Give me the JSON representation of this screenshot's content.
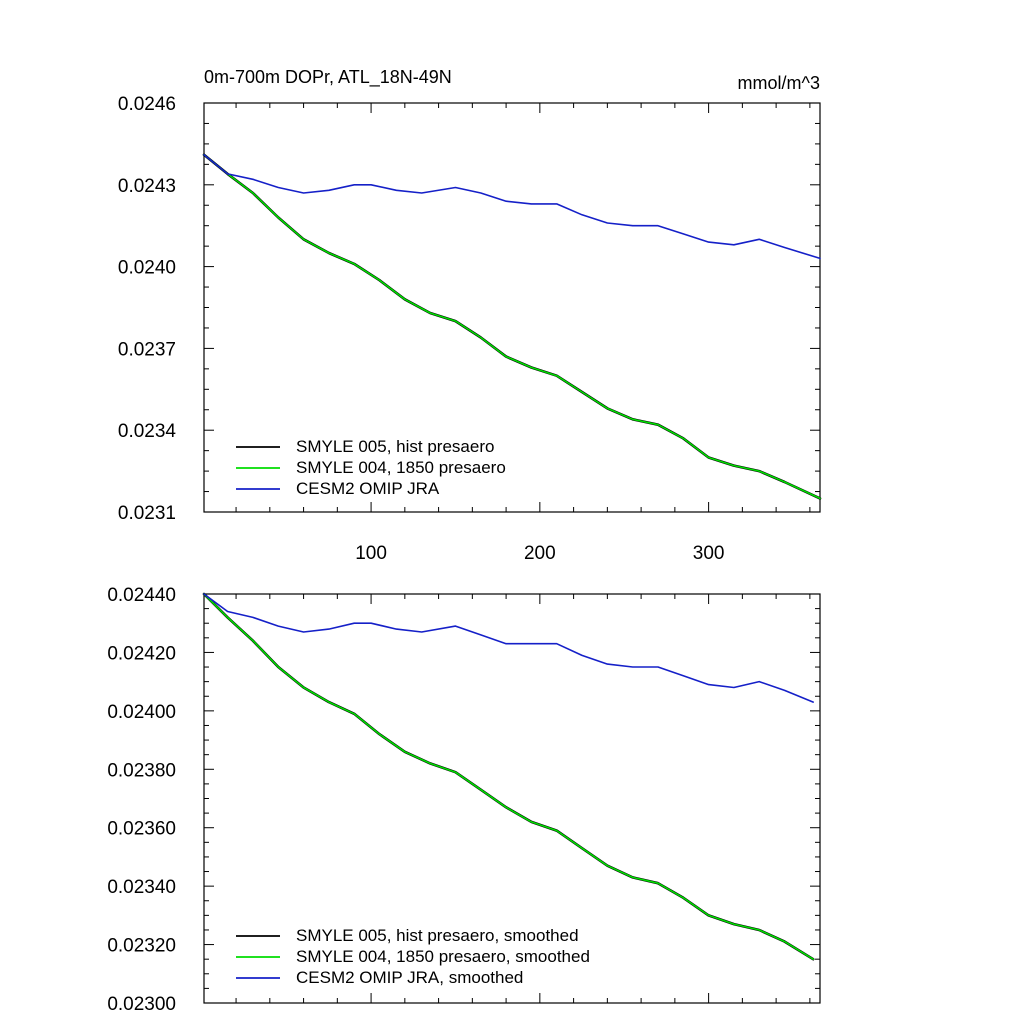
{
  "chart_data": [
    {
      "type": "line",
      "title": "0m-700m DOPr, ATL_18N-49N",
      "units": "mmol/m^3",
      "xlim": [
        1,
        366
      ],
      "ylim": [
        0.0231,
        0.0246
      ],
      "xticks": [
        100,
        200,
        300
      ],
      "xtick_labels": [
        "100",
        "200",
        "300"
      ],
      "yticks": [
        0.0231,
        0.0234,
        0.0237,
        0.024,
        0.0243,
        0.0246
      ],
      "ytick_labels": [
        "0.0231",
        "0.0234",
        "0.0237",
        "0.0240",
        "0.0243",
        "0.0246"
      ],
      "legend_position": "bottom-left",
      "series": [
        {
          "name": "SMYLE 005, hist presaero",
          "color": "#000000",
          "points": [
            [
              1,
              0.02441
            ],
            [
              15,
              0.02434
            ],
            [
              30,
              0.02427
            ],
            [
              45,
              0.02418
            ],
            [
              60,
              0.0241
            ],
            [
              75,
              0.02405
            ],
            [
              90,
              0.02401
            ],
            [
              105,
              0.02395
            ],
            [
              120,
              0.02388
            ],
            [
              135,
              0.02383
            ],
            [
              150,
              0.0238
            ],
            [
              165,
              0.02374
            ],
            [
              180,
              0.02367
            ],
            [
              195,
              0.02363
            ],
            [
              210,
              0.0236
            ],
            [
              225,
              0.02354
            ],
            [
              240,
              0.02348
            ],
            [
              255,
              0.02344
            ],
            [
              270,
              0.02342
            ],
            [
              285,
              0.02337
            ],
            [
              300,
              0.0233
            ],
            [
              315,
              0.02327
            ],
            [
              330,
              0.02325
            ],
            [
              345,
              0.02321
            ],
            [
              366,
              0.02315
            ]
          ]
        },
        {
          "name": "SMYLE 004, 1850 presaero",
          "color": "#00dd00",
          "points": [
            [
              1,
              0.02441
            ],
            [
              15,
              0.02434
            ],
            [
              30,
              0.02427
            ],
            [
              45,
              0.02418
            ],
            [
              60,
              0.0241
            ],
            [
              75,
              0.02405
            ],
            [
              90,
              0.02401
            ],
            [
              105,
              0.02395
            ],
            [
              120,
              0.02388
            ],
            [
              135,
              0.02383
            ],
            [
              150,
              0.0238
            ],
            [
              165,
              0.02374
            ],
            [
              180,
              0.02367
            ],
            [
              195,
              0.02363
            ],
            [
              210,
              0.0236
            ],
            [
              225,
              0.02354
            ],
            [
              240,
              0.02348
            ],
            [
              255,
              0.02344
            ],
            [
              270,
              0.02342
            ],
            [
              285,
              0.02337
            ],
            [
              300,
              0.0233
            ],
            [
              315,
              0.02327
            ],
            [
              330,
              0.02325
            ],
            [
              345,
              0.02321
            ],
            [
              366,
              0.02315
            ]
          ]
        },
        {
          "name": "CESM2 OMIP JRA",
          "color": "#1520c8",
          "points": [
            [
              1,
              0.02441
            ],
            [
              15,
              0.02434
            ],
            [
              30,
              0.02432
            ],
            [
              45,
              0.02429
            ],
            [
              60,
              0.02427
            ],
            [
              75,
              0.02428
            ],
            [
              90,
              0.0243
            ],
            [
              100,
              0.0243
            ],
            [
              115,
              0.02428
            ],
            [
              130,
              0.02427
            ],
            [
              150,
              0.02429
            ],
            [
              165,
              0.02427
            ],
            [
              180,
              0.02424
            ],
            [
              195,
              0.02423
            ],
            [
              210,
              0.02423
            ],
            [
              225,
              0.02419
            ],
            [
              240,
              0.02416
            ],
            [
              255,
              0.02415
            ],
            [
              270,
              0.02415
            ],
            [
              285,
              0.02412
            ],
            [
              300,
              0.02409
            ],
            [
              315,
              0.02408
            ],
            [
              330,
              0.0241
            ],
            [
              345,
              0.02407
            ],
            [
              366,
              0.02403
            ]
          ]
        }
      ]
    },
    {
      "type": "line",
      "xlim": [
        1,
        366
      ],
      "ylim": [
        0.023,
        0.0244
      ],
      "xticks": [
        100,
        200,
        300
      ],
      "yticks": [
        0.023,
        0.0232,
        0.0234,
        0.0236,
        0.0238,
        0.024,
        0.0242,
        0.0244
      ],
      "ytick_labels": [
        "0.02300",
        "0.02320",
        "0.02340",
        "0.02360",
        "0.02380",
        "0.02400",
        "0.02420",
        "0.02440"
      ],
      "legend_position": "bottom-left",
      "series": [
        {
          "name": "SMYLE 005, hist presaero, smoothed",
          "color": "#000000",
          "points": [
            [
              1,
              0.0244
            ],
            [
              15,
              0.02432
            ],
            [
              30,
              0.02424
            ],
            [
              45,
              0.02415
            ],
            [
              60,
              0.02408
            ],
            [
              75,
              0.02403
            ],
            [
              90,
              0.02399
            ],
            [
              105,
              0.02392
            ],
            [
              120,
              0.02386
            ],
            [
              135,
              0.02382
            ],
            [
              150,
              0.02379
            ],
            [
              165,
              0.02373
            ],
            [
              180,
              0.02367
            ],
            [
              195,
              0.02362
            ],
            [
              210,
              0.02359
            ],
            [
              225,
              0.02353
            ],
            [
              240,
              0.02347
            ],
            [
              255,
              0.02343
            ],
            [
              270,
              0.02341
            ],
            [
              285,
              0.02336
            ],
            [
              300,
              0.0233
            ],
            [
              315,
              0.02327
            ],
            [
              330,
              0.02325
            ],
            [
              345,
              0.02321
            ],
            [
              362,
              0.02315
            ]
          ]
        },
        {
          "name": "SMYLE 004, 1850 presaero, smoothed",
          "color": "#00dd00",
          "points": [
            [
              1,
              0.0244
            ],
            [
              15,
              0.02432
            ],
            [
              30,
              0.02424
            ],
            [
              45,
              0.02415
            ],
            [
              60,
              0.02408
            ],
            [
              75,
              0.02403
            ],
            [
              90,
              0.02399
            ],
            [
              105,
              0.02392
            ],
            [
              120,
              0.02386
            ],
            [
              135,
              0.02382
            ],
            [
              150,
              0.02379
            ],
            [
              165,
              0.02373
            ],
            [
              180,
              0.02367
            ],
            [
              195,
              0.02362
            ],
            [
              210,
              0.02359
            ],
            [
              225,
              0.02353
            ],
            [
              240,
              0.02347
            ],
            [
              255,
              0.02343
            ],
            [
              270,
              0.02341
            ],
            [
              285,
              0.02336
            ],
            [
              300,
              0.0233
            ],
            [
              315,
              0.02327
            ],
            [
              330,
              0.02325
            ],
            [
              345,
              0.02321
            ],
            [
              362,
              0.02315
            ]
          ]
        },
        {
          "name": "CESM2 OMIP JRA, smoothed",
          "color": "#1520c8",
          "points": [
            [
              1,
              0.0244
            ],
            [
              15,
              0.02434
            ],
            [
              30,
              0.02432
            ],
            [
              45,
              0.02429
            ],
            [
              60,
              0.02427
            ],
            [
              75,
              0.02428
            ],
            [
              90,
              0.0243
            ],
            [
              100,
              0.0243
            ],
            [
              115,
              0.02428
            ],
            [
              130,
              0.02427
            ],
            [
              150,
              0.02429
            ],
            [
              165,
              0.02426
            ],
            [
              180,
              0.02423
            ],
            [
              195,
              0.02423
            ],
            [
              210,
              0.02423
            ],
            [
              225,
              0.02419
            ],
            [
              240,
              0.02416
            ],
            [
              255,
              0.02415
            ],
            [
              270,
              0.02415
            ],
            [
              285,
              0.02412
            ],
            [
              300,
              0.02409
            ],
            [
              315,
              0.02408
            ],
            [
              330,
              0.0241
            ],
            [
              345,
              0.02407
            ],
            [
              362,
              0.02403
            ]
          ]
        }
      ]
    }
  ]
}
